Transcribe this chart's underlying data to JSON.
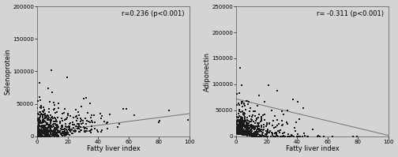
{
  "plot1": {
    "title": "r=0.236 (p<0.001)",
    "xlabel": "Fatty liver index",
    "ylabel": "Selenoprotein",
    "xlim": [
      0,
      100
    ],
    "ylim": [
      0,
      200000
    ],
    "yticks": [
      0,
      50000,
      100000,
      150000,
      200000
    ],
    "xticks": [
      0,
      20,
      40,
      60,
      80,
      100
    ],
    "r": 0.236,
    "line_x": [
      0,
      100
    ],
    "line_y": [
      5000,
      35000
    ]
  },
  "plot2": {
    "title": "r= -0.311 (p<0.001)",
    "xlabel": "Fatty liver index",
    "ylabel": "Adiponectin",
    "xlim": [
      0,
      100
    ],
    "ylim": [
      0,
      250000
    ],
    "yticks": [
      0,
      50000,
      100000,
      150000,
      200000,
      250000
    ],
    "xticks": [
      0,
      20,
      40,
      60,
      80,
      100
    ],
    "r": -0.311,
    "line_x": [
      0,
      100
    ],
    "line_y": [
      72000,
      2000
    ]
  },
  "bg_color": "#d4d4d4",
  "plot_bg_color": "#d4d4d4",
  "scatter_color": "#1a1a1a",
  "scatter_size": 3,
  "line_color": "#707070",
  "n_points": 600,
  "seed1": 12,
  "seed2": 77
}
